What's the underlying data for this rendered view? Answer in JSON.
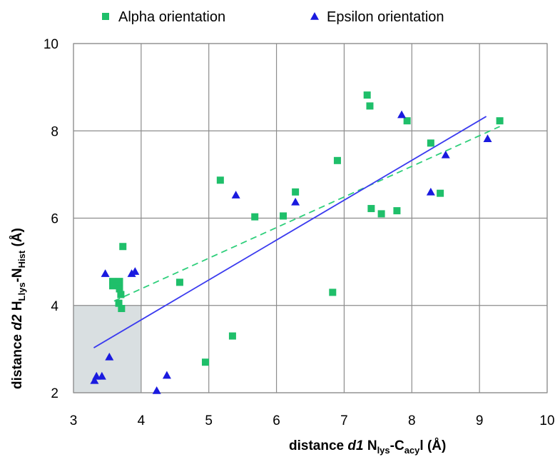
{
  "chart_data": {
    "type": "scatter",
    "title": "",
    "xlabel": {
      "pre": "distance ",
      "var": "d1",
      "n1": " N",
      "n1_sub": "lys",
      "mid": "-C",
      "c_sub": "acy",
      "post": "l (Å)"
    },
    "ylabel": {
      "pre": "distance ",
      "var": "d2",
      "h": " H",
      "h_sub": "Llys",
      "mid": "-N",
      "n_sub": "Hist",
      "post": " (Å)"
    },
    "xlim": [
      3,
      10
    ],
    "ylim": [
      2,
      10
    ],
    "x_ticks": [
      "3",
      "4",
      "5",
      "6",
      "7",
      "8",
      "9",
      "10"
    ],
    "y_ticks": [
      "2",
      "4",
      "6",
      "8",
      "10"
    ],
    "grid": true,
    "legend_position": "top",
    "highlight_region": {
      "x": [
        3,
        4
      ],
      "y": [
        2,
        4
      ],
      "color": "#d9dfe1"
    },
    "series": [
      {
        "name": "Alpha orientation",
        "marker": "square",
        "color": "#1fbf6a",
        "points": [
          [
            3.58,
            4.55
          ],
          [
            3.58,
            4.45
          ],
          [
            3.68,
            4.55
          ],
          [
            3.68,
            4.45
          ],
          [
            3.68,
            4.38
          ],
          [
            3.7,
            4.25
          ],
          [
            3.67,
            4.05
          ],
          [
            3.71,
            3.93
          ],
          [
            3.73,
            5.35
          ],
          [
            4.57,
            4.53
          ],
          [
            4.95,
            2.7
          ],
          [
            5.17,
            6.87
          ],
          [
            5.35,
            3.3
          ],
          [
            5.68,
            6.03
          ],
          [
            6.1,
            6.05
          ],
          [
            6.28,
            6.6
          ],
          [
            6.83,
            4.3
          ],
          [
            6.9,
            7.32
          ],
          [
            7.34,
            8.82
          ],
          [
            7.38,
            8.57
          ],
          [
            7.4,
            6.22
          ],
          [
            7.55,
            6.1
          ],
          [
            7.78,
            6.17
          ],
          [
            7.93,
            8.23
          ],
          [
            8.28,
            7.72
          ],
          [
            8.42,
            6.57
          ],
          [
            9.3,
            8.23
          ]
        ]
      },
      {
        "name": "Epsilon orientation",
        "marker": "triangle",
        "color": "#1a1adf",
        "points": [
          [
            3.31,
            2.28
          ],
          [
            3.34,
            2.38
          ],
          [
            3.42,
            2.38
          ],
          [
            3.47,
            4.73
          ],
          [
            3.53,
            2.82
          ],
          [
            3.86,
            4.73
          ],
          [
            3.91,
            4.78
          ],
          [
            4.23,
            2.05
          ],
          [
            4.38,
            2.4
          ],
          [
            5.4,
            6.53
          ],
          [
            6.28,
            6.37
          ],
          [
            7.85,
            8.37
          ],
          [
            8.28,
            6.6
          ],
          [
            8.5,
            7.45
          ],
          [
            9.12,
            7.82
          ]
        ]
      }
    ],
    "trendlines": [
      {
        "series": "Alpha orientation",
        "style": "dashed",
        "color": "#2ecf7b",
        "from": [
          3.6,
          4.1
        ],
        "to": [
          9.3,
          8.1
        ]
      },
      {
        "series": "Epsilon orientation",
        "style": "solid",
        "color": "#3b3bef",
        "from": [
          3.3,
          3.03
        ],
        "to": [
          9.1,
          8.33
        ]
      }
    ]
  }
}
